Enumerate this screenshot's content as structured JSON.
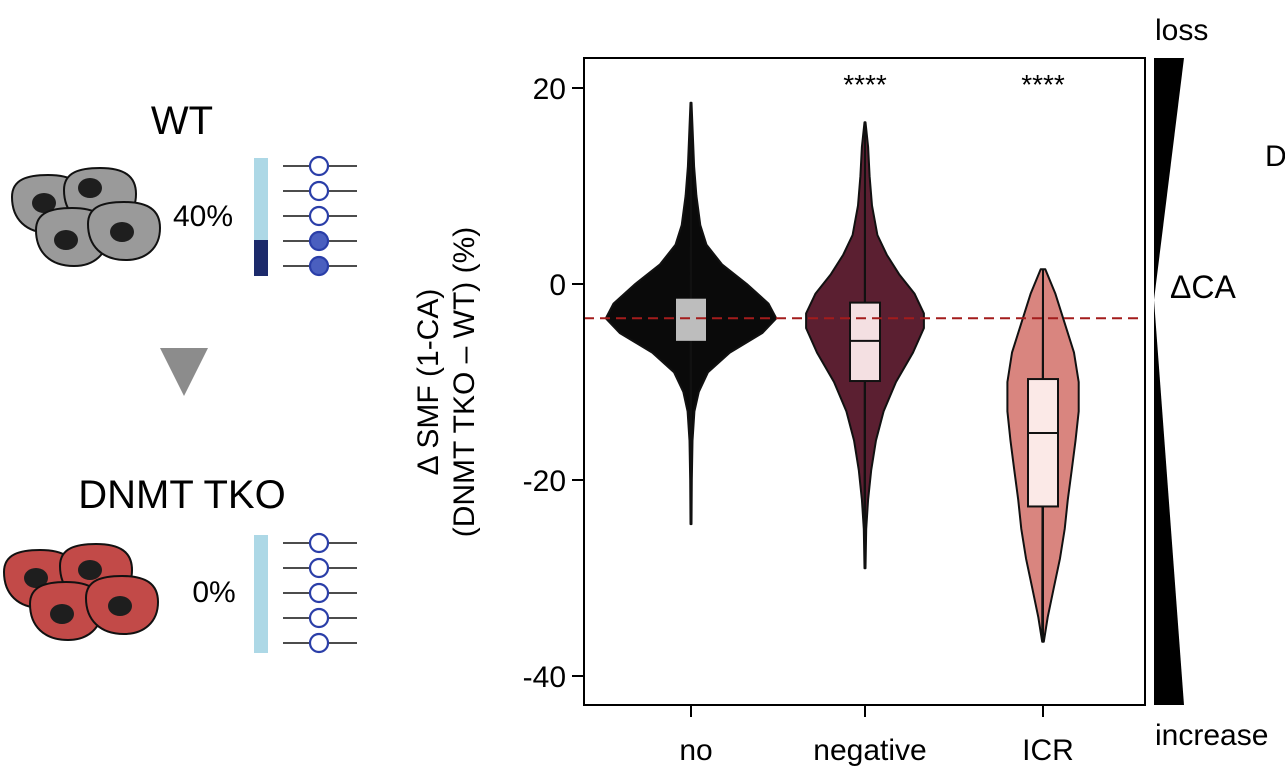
{
  "schematic": {
    "wt_label": "WT",
    "wt_percent": "40%",
    "tko_label": "DNMT TKO",
    "tko_percent": "0%",
    "colors": {
      "wt_cell": "#9a9a9a",
      "tko_cell": "#c24a48",
      "nucleus": "#1e1e1e",
      "bar_light": "#add8e6",
      "bar_dark": "#1c2a6b",
      "lollipop": "#2a3ea8",
      "lollipop_filled": "#4a5fbf",
      "arrow": "#8c8c8c"
    },
    "wt_methylated": [
      false,
      false,
      false,
      true,
      true
    ],
    "tko_methylated": [
      false,
      false,
      false,
      false,
      false
    ]
  },
  "annotations": {
    "top": "loss",
    "bottom": "increase",
    "middle": "ΔCA",
    "cut_letter": "D"
  },
  "chart_data": {
    "type": "violin",
    "ylabel_line1": "Δ SMF (1-CA)",
    "ylabel_line2": "(DNMT TKO – WT) (%)",
    "ylim": [
      -43,
      23
    ],
    "yticks": [
      -40,
      -20,
      0,
      20
    ],
    "ytick_labels": [
      "-40",
      "-20",
      "0",
      "20"
    ],
    "reference_line": -3.5,
    "reference_color": "#a31c1c",
    "categories": [
      "no",
      "negative",
      "ICR"
    ],
    "significance": [
      "",
      "****",
      "****"
    ],
    "series": [
      {
        "category": "no",
        "color": "#0a0a0a",
        "box_color": "#bdbdbd",
        "q1": -5.8,
        "median": -3.3,
        "q3": -1.5,
        "profile": [
          [
            -24.5,
            0.3
          ],
          [
            -20,
            0.5
          ],
          [
            -16,
            1.0
          ],
          [
            -13,
            2.2
          ],
          [
            -11,
            5.0
          ],
          [
            -9,
            11
          ],
          [
            -7,
            25
          ],
          [
            -5,
            46
          ],
          [
            -3.5,
            55
          ],
          [
            -2,
            50
          ],
          [
            0,
            36
          ],
          [
            2,
            20
          ],
          [
            4,
            10
          ],
          [
            6,
            6
          ],
          [
            9,
            3.5
          ],
          [
            12,
            2
          ],
          [
            15,
            1.2
          ],
          [
            18.5,
            0.3
          ]
        ]
      },
      {
        "category": "negative",
        "color": "#5b1f31",
        "box_color": "#f4e0e2",
        "q1": -9.9,
        "median": -5.8,
        "q3": -1.9,
        "profile": [
          [
            -29,
            0.3
          ],
          [
            -25,
            0.8
          ],
          [
            -22,
            2.0
          ],
          [
            -19,
            4.0
          ],
          [
            -16,
            7.0
          ],
          [
            -13,
            12
          ],
          [
            -10,
            20
          ],
          [
            -7,
            31
          ],
          [
            -4.5,
            38
          ],
          [
            -3,
            38
          ],
          [
            -1,
            32
          ],
          [
            1,
            22
          ],
          [
            3,
            14
          ],
          [
            5,
            8
          ],
          [
            8,
            4.5
          ],
          [
            11,
            3
          ],
          [
            14,
            2
          ],
          [
            16.5,
            0.3
          ]
        ]
      },
      {
        "category": "ICR",
        "color": "#d9857f",
        "box_color": "#fbe9e7",
        "q1": -22.7,
        "median": -15.2,
        "q3": -9.7,
        "profile": [
          [
            -36.5,
            0.5
          ],
          [
            -34,
            3.0
          ],
          [
            -31,
            7.0
          ],
          [
            -28,
            11
          ],
          [
            -25,
            14
          ],
          [
            -22,
            16
          ],
          [
            -19,
            18.5
          ],
          [
            -16,
            21
          ],
          [
            -13,
            23
          ],
          [
            -10,
            23
          ],
          [
            -7,
            20
          ],
          [
            -4,
            14
          ],
          [
            -1,
            8
          ],
          [
            1.5,
            1.5
          ]
        ]
      }
    ]
  }
}
